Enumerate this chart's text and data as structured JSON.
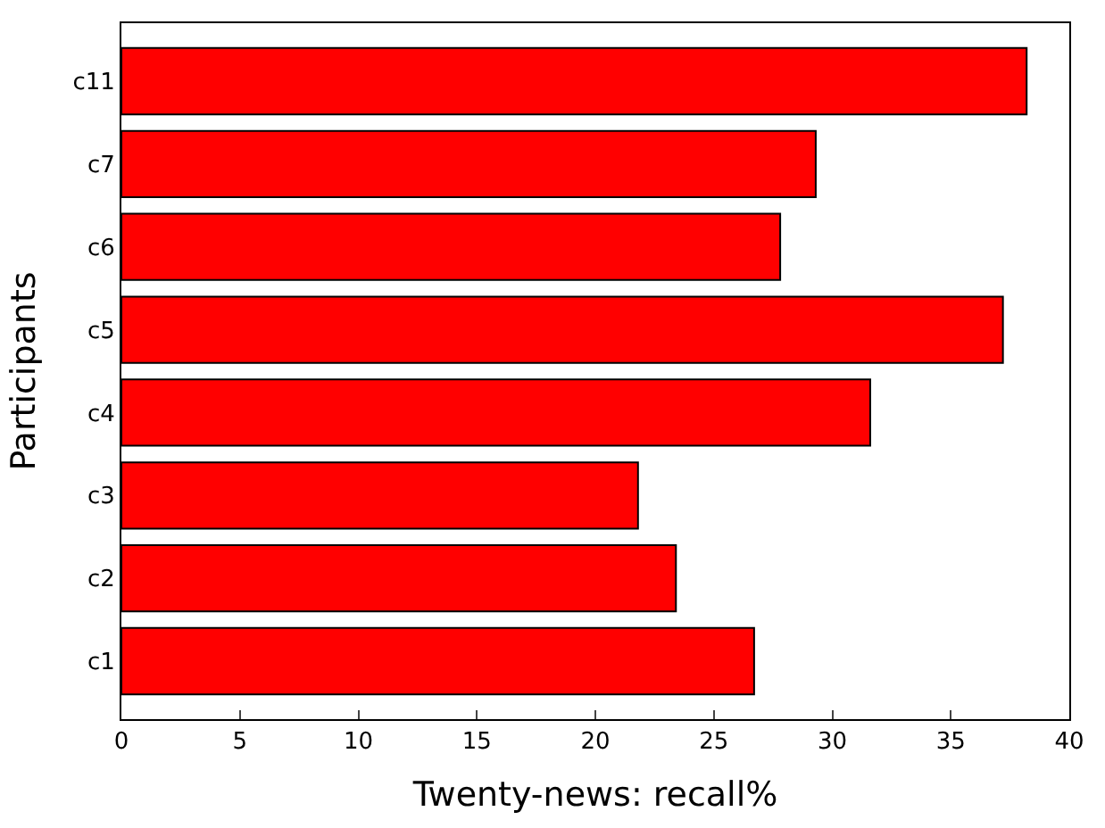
{
  "chart_data": {
    "type": "bar",
    "orientation": "horizontal",
    "xlabel": "Twenty-news: recall%",
    "ylabel": "Participants",
    "categories": [
      "c11",
      "c7",
      "c6",
      "c5",
      "c4",
      "c3",
      "c2",
      "c1"
    ],
    "values": [
      38.2,
      29.3,
      27.8,
      37.2,
      31.6,
      21.8,
      23.4,
      26.7
    ],
    "color": "#ff0000",
    "xlim": [
      0,
      40
    ],
    "xticks": [
      0,
      5,
      10,
      15,
      20,
      25,
      30,
      35,
      40
    ]
  }
}
